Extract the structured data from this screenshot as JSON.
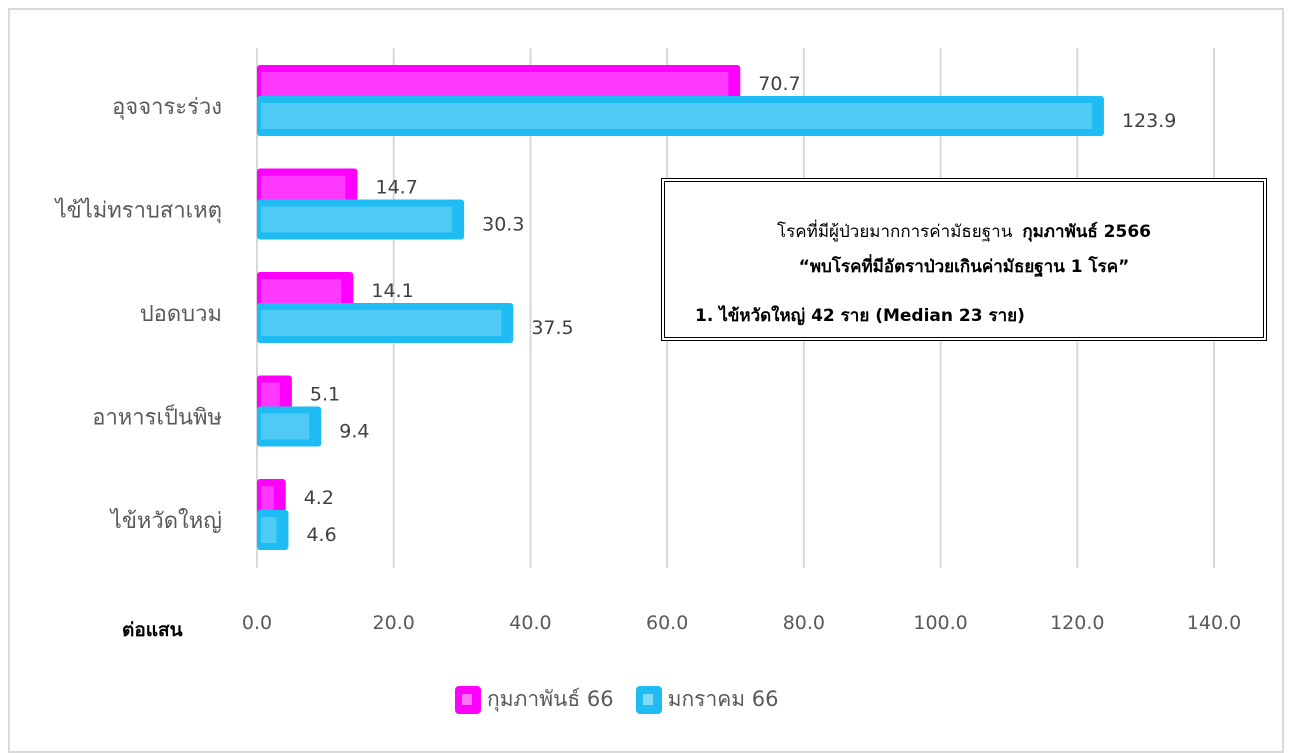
{
  "chart_data": {
    "type": "bar",
    "orientation": "horizontal",
    "categories": [
      "อุจจาระร่วง",
      "ไข้ไม่ทราบสาเหตุ",
      "ปอดบวม",
      "อาหารเป็นพิษ",
      "ไข้หวัดใหญ่"
    ],
    "series": [
      {
        "name": "กุมภาพันธ์ 66",
        "values": [
          70.7,
          14.7,
          14.1,
          5.1,
          4.2
        ],
        "color": "#ff00ff",
        "fill": "#ff33ff"
      },
      {
        "name": "มกราคม 66",
        "values": [
          123.9,
          30.3,
          37.5,
          9.4,
          4.6
        ],
        "color": "#1ebcf2",
        "fill": "#45c8f5"
      }
    ],
    "value_labels": [
      [
        "70.7",
        "14.7",
        "14.1",
        "5.1",
        "4.2"
      ],
      [
        "123.9",
        "30.3",
        "37.5",
        "9.4",
        "4.6"
      ]
    ],
    "x_ticks": [
      "0.0",
      "20.0",
      "40.0",
      "60.0",
      "80.0",
      "100.0",
      "120.0",
      "140.0"
    ],
    "xlim": [
      0,
      140
    ],
    "xlabel": "ต่อแสน",
    "grid": true,
    "legend_position": "bottom"
  },
  "annotation": {
    "line1_prefix": "โรคที่มีผู้ป่วยมากการค่ามัธยฐาน",
    "line1_bold": "กุมภาพันธ์ 2566",
    "line2": "“พบโรคที่มีอัตราป่วยเกินค่ามัธยฐาน 1 โรค”",
    "line3": "1.  ไข้หวัดใหญ่ 42 ราย (Median 23 ราย)"
  }
}
